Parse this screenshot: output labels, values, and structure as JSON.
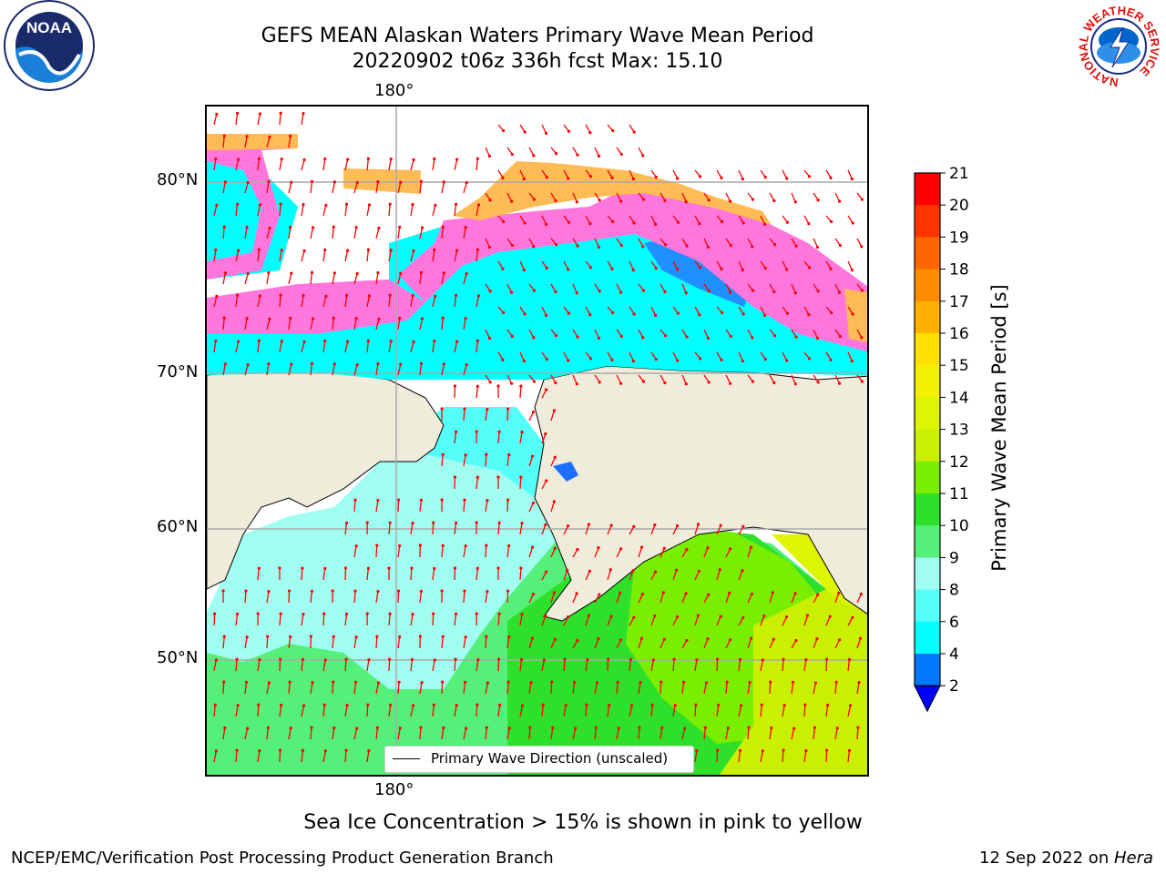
{
  "header": {
    "title_line1": "GEFS MEAN Alaskan Waters Primary Wave Mean Period",
    "title_line2": "20220902 t06z 336h fcst   Max: 15.10"
  },
  "map": {
    "lon_label_top": "180°",
    "lon_label_bottom": "180°",
    "lat_labels": [
      "80°N",
      "70°N",
      "60°N",
      "50°N"
    ],
    "arrow_color": "#ff0000",
    "land_color": "#efecdc",
    "legend_text": "Primary Wave Direction (unscaled)"
  },
  "colorbar": {
    "label": "Primary Wave Mean Period [s]",
    "ticks": [
      "21",
      "20",
      "19",
      "18",
      "17",
      "16",
      "15",
      "14",
      "13",
      "12",
      "11",
      "10",
      "9",
      "8",
      "6",
      "4",
      "2"
    ],
    "colors": [
      "#ff0000",
      "#ff3300",
      "#ff6600",
      "#ff8c00",
      "#ffb000",
      "#ffe000",
      "#f2f200",
      "#ddf500",
      "#c8f000",
      "#7aee00",
      "#2ee02a",
      "#55f07a",
      "#a0fff0",
      "#55fffa",
      "#00ffff",
      "#0077ff",
      "#0000ff"
    ]
  },
  "footer": {
    "caption": "Sea Ice Concentration > 15% is shown in pink to yellow",
    "left": "NCEP/EMC/Verification Post Processing Product Generation Branch",
    "right_date": "12 Sep 2022 on ",
    "right_host": "Hera"
  },
  "logos": {
    "noaa_text": "NOAA",
    "nws_text": "NATIONAL WEATHER SERVICE"
  }
}
